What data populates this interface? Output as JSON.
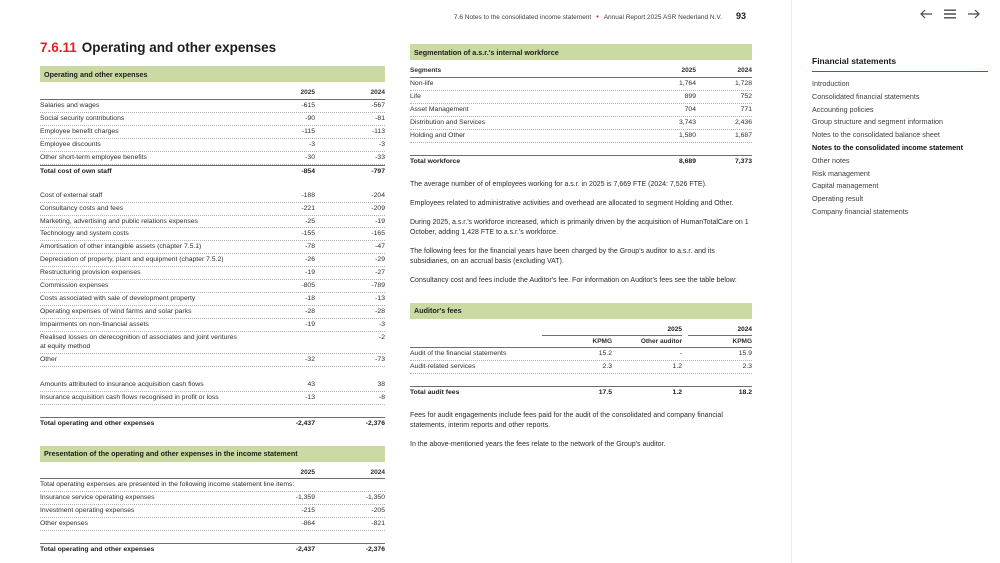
{
  "colors": {
    "accent_red": "#e2231d",
    "band_green": "#cbd9a3",
    "text_dark": "#1d1d1b"
  },
  "header": {
    "breadcrumb": "7.6 Notes to the consolidated income statement",
    "separator": "•",
    "report_title": "Annual Report 2025 ASR Nederland N.V.",
    "page_number": "93",
    "icons": {
      "previous": "arrow-left",
      "menu": "hamburger-menu",
      "next": "arrow-right"
    }
  },
  "section": {
    "number": "7.6.11",
    "title": "Operating and other expenses"
  },
  "tables": {
    "opex": {
      "title": "Operating and other expenses",
      "label_header": "",
      "columns": [
        "2025",
        "2024"
      ],
      "rows": [
        {
          "label": "Salaries and wages",
          "values": [
            "-615",
            "-567"
          ]
        },
        {
          "label": "Social security contributions",
          "values": [
            "-90",
            "-81"
          ]
        },
        {
          "label": "Employee benefit charges",
          "values": [
            "-115",
            "-113"
          ]
        },
        {
          "label": "Employee discounts",
          "values": [
            "-3",
            "-3"
          ]
        },
        {
          "label": "Other short-term employee benefits",
          "values": [
            "-30",
            "-33"
          ]
        },
        {
          "label": "Total cost of own staff",
          "values": [
            "-854",
            "-797"
          ],
          "style": "total"
        },
        {
          "style": "spacer"
        },
        {
          "label": "Cost of external staff",
          "values": [
            "-188",
            "-204"
          ]
        },
        {
          "label": "Consultancy costs and fees",
          "values": [
            "-221",
            "-209"
          ]
        },
        {
          "label": "Marketing, advertising and public relations expenses",
          "values": [
            "-25",
            "-19"
          ]
        },
        {
          "label": "Technology and system costs",
          "values": [
            "-155",
            "-165"
          ]
        },
        {
          "label": "Amortisation of other intangible assets (chapter 7.5.1)",
          "values": [
            "-78",
            "-47"
          ]
        },
        {
          "label": "Depreciation of property, plant and equipment (chapter 7.5.2)",
          "values": [
            "-26",
            "-29"
          ]
        },
        {
          "label": "Restructuring provision expenses",
          "values": [
            "-19",
            "-27"
          ]
        },
        {
          "label": "Commission expenses",
          "values": [
            "-805",
            "-789"
          ]
        },
        {
          "label": "Costs associated with sale of development property",
          "values": [
            "-18",
            "-13"
          ]
        },
        {
          "label": "Operating expenses of wind farms and solar parks",
          "values": [
            "-28",
            "-28"
          ]
        },
        {
          "label": "Impairments on non-financial assets",
          "values": [
            "-19",
            "-3"
          ]
        },
        {
          "label": "Realised losses on derecognition of associates and joint ventures at equity method",
          "values": [
            "",
            "-2"
          ]
        },
        {
          "label": "Other",
          "values": [
            "-32",
            "-73"
          ]
        },
        {
          "style": "spacer"
        },
        {
          "label": "Amounts attributed to insurance acquisition cash flows",
          "values": [
            "43",
            "38"
          ]
        },
        {
          "label": "Insurance acquisition cash flows recognised in profit or loss",
          "values": [
            "-13",
            "-8"
          ]
        },
        {
          "style": "spacer"
        },
        {
          "label": "Total operating and other expenses",
          "values": [
            "-2,437",
            "-2,376"
          ],
          "style": "total"
        }
      ]
    },
    "presentation": {
      "title": "Presentation of the operating and other expenses in the income statement",
      "label_header": "",
      "columns": [
        "2025",
        "2024"
      ],
      "note": "Total operating expenses are presented in the following income statement line items:",
      "rows": [
        {
          "label": "Insurance service operating expenses",
          "values": [
            "-1,359",
            "-1,350"
          ]
        },
        {
          "label": "Investment operating expenses",
          "values": [
            "-215",
            "-205"
          ]
        },
        {
          "label": "Other expenses",
          "values": [
            "-864",
            "-821"
          ]
        },
        {
          "style": "spacer"
        },
        {
          "label": "Total operating and other expenses",
          "values": [
            "-2,437",
            "-2,376"
          ],
          "style": "total"
        }
      ]
    },
    "segmentation": {
      "title": "Segmentation of a.s.r.'s internal workforce",
      "label_header": "Segments",
      "columns": [
        "2025",
        "2024"
      ],
      "rows": [
        {
          "label": "Non-life",
          "values": [
            "1,764",
            "1,728"
          ]
        },
        {
          "label": "Life",
          "values": [
            "899",
            "752"
          ]
        },
        {
          "label": "Asset Management",
          "values": [
            "704",
            "771"
          ]
        },
        {
          "label": "Distribution and Services",
          "values": [
            "3,743",
            "2,436"
          ]
        },
        {
          "label": "Holding and Other",
          "values": [
            "1,580",
            "1,687"
          ]
        },
        {
          "style": "spacer"
        },
        {
          "label": "Total workforce",
          "values": [
            "8,689",
            "7,373"
          ],
          "style": "total"
        }
      ]
    },
    "auditors": {
      "title": "Auditor's fees",
      "label_header": "",
      "year_headers": [
        "2025",
        "2024"
      ],
      "columns": [
        "KPMG",
        "Other auditor",
        "KPMG"
      ],
      "rows": [
        {
          "label": "Audit of the financial statements",
          "values": [
            "15.2",
            "-",
            "15.9"
          ]
        },
        {
          "label": "Audit-related services",
          "values": [
            "2.3",
            "1.2",
            "2.3"
          ]
        },
        {
          "style": "spacer"
        },
        {
          "label": "Total audit fees",
          "values": [
            "17.5",
            "1.2",
            "18.2"
          ],
          "style": "total"
        }
      ]
    }
  },
  "paragraphs": {
    "average_fte": "The average number of of employees working for a.s.r. in 2025 is 7,669 FTE (2024: 7,526 FTE).",
    "overhead": "Employees related to administrative activities and overhead are allocated to segment Holding and Other.",
    "workforce_increase": "During 2025, a.s.r.'s workforce increased, which is primarily driven by the acquisition of HumanTotalCare on 1 October, adding 1,428 FTE to a.s.r.'s workforce.",
    "auditor_fees_intro": "The following fees for the financial years have been charged by the Group's auditor to a.s.r. and its subsidiaries, on an accrual basis (excluding VAT).",
    "consultancy_note": "Consultancy cost and fees include the Auditor's fee. For information on Auditor's fees see the table below:",
    "audit_engagements": "Fees for audit engagements include fees paid for the audit of the consolidated and company financial statements, interim reports and other reports.",
    "network_note": "In the above-mentioned years the fees relate to the network of the Group's auditor."
  },
  "sidebar": {
    "title": "Financial statements",
    "items": [
      {
        "label": "Introduction",
        "active": false
      },
      {
        "label": "Consolidated financial statements",
        "active": false
      },
      {
        "label": "Accounting policies",
        "active": false
      },
      {
        "label": "Group structure and segment information",
        "active": false
      },
      {
        "label": "Notes to the consolidated balance sheet",
        "active": false
      },
      {
        "label": "Notes to the consolidated income statement",
        "active": true
      },
      {
        "label": "Other notes",
        "active": false
      },
      {
        "label": "Risk management",
        "active": false
      },
      {
        "label": "Capital management",
        "active": false
      },
      {
        "label": "Operating result",
        "active": false
      },
      {
        "label": "Company financial statements",
        "active": false
      }
    ]
  }
}
